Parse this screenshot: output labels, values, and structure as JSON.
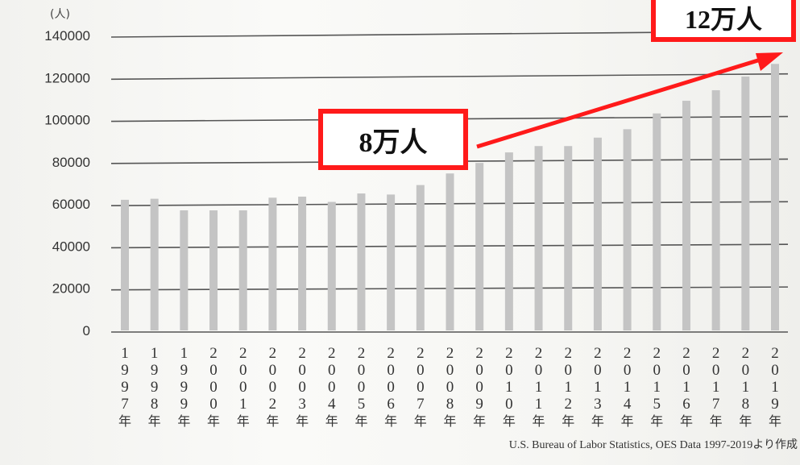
{
  "chart_data": {
    "type": "bar",
    "title": "",
    "xlabel": "",
    "ylabel": "(人)",
    "ylim": [
      0,
      140000
    ],
    "yticks": [
      0,
      20000,
      40000,
      60000,
      80000,
      100000,
      120000,
      140000
    ],
    "grid": true,
    "categories": [
      "1997年",
      "1998年",
      "1999年",
      "2000年",
      "2001年",
      "2002年",
      "2003年",
      "2004年",
      "2005年",
      "2006年",
      "2007年",
      "2008年",
      "2009年",
      "2010年",
      "2011年",
      "2012年",
      "2013年",
      "2014年",
      "2015年",
      "2016年",
      "2017年",
      "2018年",
      "2019年"
    ],
    "values": [
      62000,
      62500,
      57000,
      57000,
      57000,
      63000,
      63500,
      61000,
      65000,
      64500,
      69000,
      74500,
      79500,
      84500,
      87500,
      87500,
      91500,
      95500,
      103000,
      109000,
      114000,
      120500,
      126500
    ],
    "bar_color": "#c4c4c4"
  },
  "annotations": {
    "callout_8": "8万人",
    "callout_12": "12万人",
    "arrow_color": "#ff1a1a",
    "box_border_color": "#ff1a1a"
  },
  "source": "U.S. Bureau of Labor Statistics, OES Data 1997-2019より作成"
}
